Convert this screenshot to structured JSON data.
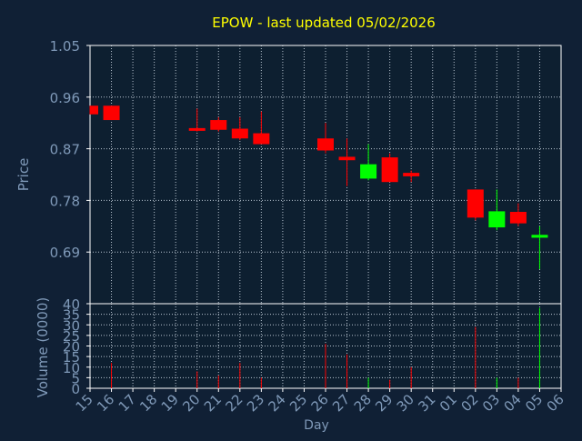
{
  "colors": {
    "background": "#102035",
    "plot_background": "#0d1f30",
    "axis": "#ffffff",
    "grid": "#b8c4d0",
    "title": "#ffff00",
    "label": "#7f99b8",
    "tick_label": "#7f99b8",
    "up": "#00ff00",
    "down": "#ff0000"
  },
  "chart_data": {
    "type": "candlestick",
    "title": "EPOW - last updated 05/02/2026",
    "xlabel": "Day",
    "grid": true,
    "price_panel": {
      "ylabel": "Price",
      "ylim": [
        0.6,
        1.05
      ],
      "yticks": [
        "1.05",
        "0.96",
        "0.87",
        "0.78",
        "0.69"
      ],
      "ytick_values": [
        1.05,
        0.96,
        0.87,
        0.78,
        0.69
      ]
    },
    "volume_panel": {
      "ylabel": "Volume (0000)",
      "ylim": [
        0,
        40
      ],
      "yticks": [
        "40",
        "35",
        "30",
        "25",
        "20",
        "15",
        "10",
        "5",
        "0"
      ],
      "ytick_values": [
        40,
        35,
        30,
        25,
        20,
        15,
        10,
        5,
        0
      ]
    },
    "x_ticks": [
      "15",
      "16",
      "17",
      "18",
      "19",
      "20",
      "21",
      "22",
      "23",
      "24",
      "25",
      "26",
      "27",
      "28",
      "29",
      "30",
      "31",
      "01",
      "02",
      "03",
      "04",
      "05",
      "06"
    ],
    "candles": [
      {
        "day": "15",
        "open": 0.945,
        "high": 0.945,
        "low": 0.93,
        "close": 0.93,
        "volume": 0
      },
      {
        "day": "16",
        "open": 0.945,
        "high": 0.945,
        "low": 0.92,
        "close": 0.92,
        "volume": 12
      },
      {
        "day": "20",
        "open": 0.906,
        "high": 0.94,
        "low": 0.9,
        "close": 0.904,
        "volume": 8
      },
      {
        "day": "21",
        "open": 0.92,
        "high": 0.925,
        "low": 0.9,
        "close": 0.903,
        "volume": 6
      },
      {
        "day": "22",
        "open": 0.905,
        "high": 0.925,
        "low": 0.885,
        "close": 0.888,
        "volume": 12
      },
      {
        "day": "23",
        "open": 0.897,
        "high": 0.935,
        "low": 0.878,
        "close": 0.878,
        "volume": 5
      },
      {
        "day": "26",
        "open": 0.888,
        "high": 0.915,
        "low": 0.862,
        "close": 0.867,
        "volume": 21
      },
      {
        "day": "27",
        "open": 0.856,
        "high": 0.888,
        "low": 0.805,
        "close": 0.85,
        "volume": 16
      },
      {
        "day": "28",
        "open": 0.818,
        "high": 0.878,
        "low": 0.815,
        "close": 0.843,
        "volume": 5
      },
      {
        "day": "29",
        "open": 0.855,
        "high": 0.862,
        "low": 0.812,
        "close": 0.812,
        "volume": 4
      },
      {
        "day": "30",
        "open": 0.828,
        "high": 0.832,
        "low": 0.812,
        "close": 0.822,
        "volume": 10
      },
      {
        "day": "02",
        "open": 0.799,
        "high": 0.799,
        "low": 0.745,
        "close": 0.75,
        "volume": 29
      },
      {
        "day": "03",
        "open": 0.733,
        "high": 0.799,
        "low": 0.728,
        "close": 0.761,
        "volume": 5
      },
      {
        "day": "04",
        "open": 0.76,
        "high": 0.775,
        "low": 0.735,
        "close": 0.74,
        "volume": 5
      },
      {
        "day": "05",
        "open": 0.715,
        "high": 0.735,
        "low": 0.66,
        "close": 0.72,
        "volume": 38
      }
    ]
  }
}
